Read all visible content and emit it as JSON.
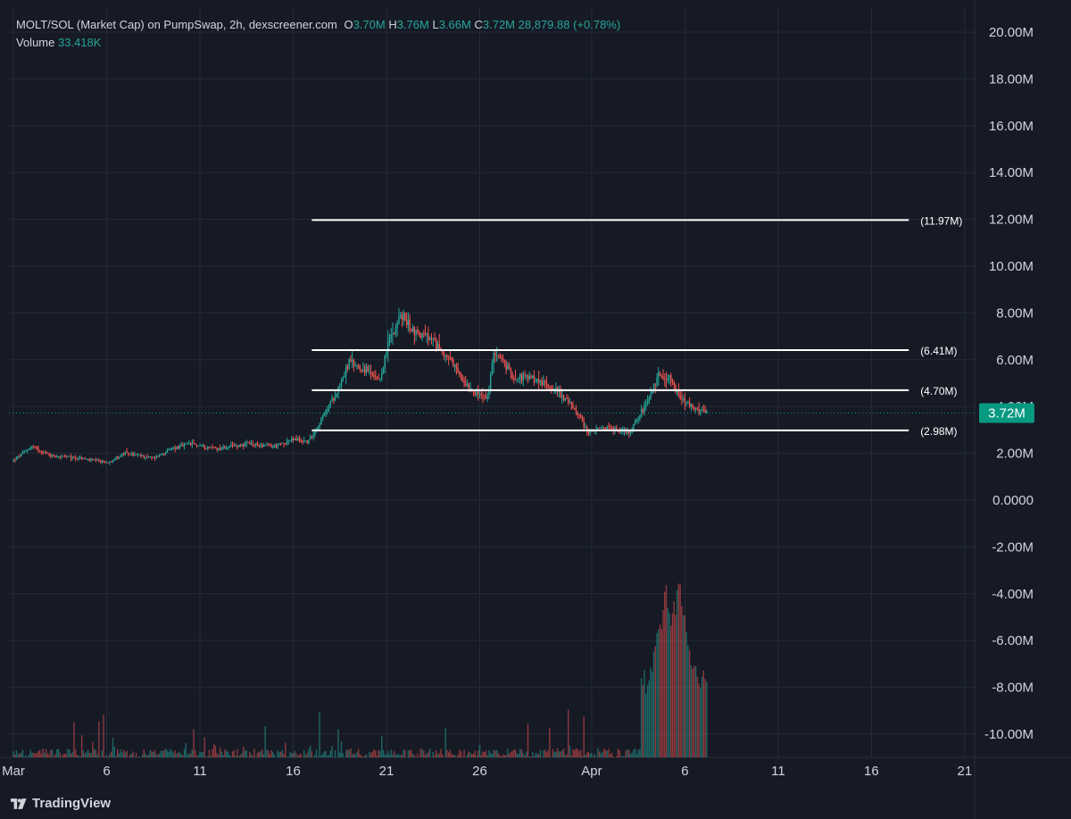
{
  "header": {
    "title": "MOLT/SOL (Market Cap) on PumpSwap, 2h, dexscreener.com",
    "ohlc": [
      {
        "key": "O",
        "value": "3.70M"
      },
      {
        "key": "H",
        "value": "3.76M"
      },
      {
        "key": "L",
        "value": "3.66M"
      },
      {
        "key": "C",
        "value": "3.72M"
      }
    ],
    "change": "28,879.88 (+0.78%)",
    "volume_label": "Volume",
    "volume_value": "33.418K"
  },
  "brand": {
    "name": "TradingView",
    "icon": "tradingview-logo-icon"
  },
  "colors": {
    "background": "#161a25",
    "grid": "#252a37",
    "up": "#26a69a",
    "down": "#ef5350",
    "level_line": "#ffffff",
    "price_tag": "#089981"
  },
  "chart_data": {
    "type": "candlestick",
    "x_axis": {
      "range": [
        "Mar 1",
        "Apr 23"
      ],
      "tick_labels": [
        {
          "label": "Mar",
          "day": 1
        },
        {
          "label": "6",
          "day": 6
        },
        {
          "label": "11",
          "day": 11
        },
        {
          "label": "16",
          "day": 16
        },
        {
          "label": "21",
          "day": 21
        },
        {
          "label": "26",
          "day": 26
        },
        {
          "label": "Apr",
          "day": 32
        },
        {
          "label": "6",
          "day": 37
        },
        {
          "label": "11",
          "day": 42
        },
        {
          "label": "16",
          "day": 47
        },
        {
          "label": "21",
          "day": 52
        }
      ]
    },
    "y_axis": {
      "range": [
        -10.8,
        20.8
      ],
      "unit": "M",
      "tick_labels": [
        {
          "label": "20.00M",
          "value": 20
        },
        {
          "label": "18.00M",
          "value": 18
        },
        {
          "label": "16.00M",
          "value": 16
        },
        {
          "label": "14.00M",
          "value": 14
        },
        {
          "label": "12.00M",
          "value": 12
        },
        {
          "label": "10.00M",
          "value": 10
        },
        {
          "label": "8.00M",
          "value": 8
        },
        {
          "label": "6.00M",
          "value": 6
        },
        {
          "label": "4.00M",
          "value": 4
        },
        {
          "label": "2.00M",
          "value": 2
        },
        {
          "label": "0.0000",
          "value": 0
        },
        {
          "label": "-2.00M",
          "value": -2
        },
        {
          "label": "-4.00M",
          "value": -4
        },
        {
          "label": "-6.00M",
          "value": -6
        },
        {
          "label": "-8.00M",
          "value": -8
        },
        {
          "label": "-10.00M",
          "value": -10
        }
      ]
    },
    "grid": true,
    "last_price": {
      "label": "3.72M",
      "value": 3.72
    },
    "levels": [
      {
        "label": "(11.97M)",
        "value": 11.97,
        "from_day": 17.0,
        "to_day": 49.0
      },
      {
        "label": "(6.41M)",
        "value": 6.41,
        "from_day": 17.0,
        "to_day": 49.0
      },
      {
        "label": "(4.70M)",
        "value": 4.7,
        "from_day": 17.0,
        "to_day": 49.0
      },
      {
        "label": "(2.98M)",
        "value": 2.98,
        "from_day": 17.0,
        "to_day": 49.0
      }
    ],
    "price_path": [
      {
        "day": 1.0,
        "value": 1.7
      },
      {
        "day": 2.0,
        "value": 2.3
      },
      {
        "day": 3.0,
        "value": 1.9
      },
      {
        "day": 4.5,
        "value": 1.8
      },
      {
        "day": 6.0,
        "value": 1.6
      },
      {
        "day": 7.0,
        "value": 2.0
      },
      {
        "day": 8.5,
        "value": 1.8
      },
      {
        "day": 9.5,
        "value": 2.2
      },
      {
        "day": 10.5,
        "value": 2.4
      },
      {
        "day": 12.0,
        "value": 2.2
      },
      {
        "day": 13.5,
        "value": 2.4
      },
      {
        "day": 15.0,
        "value": 2.3
      },
      {
        "day": 16.0,
        "value": 2.6
      },
      {
        "day": 16.8,
        "value": 2.5
      },
      {
        "day": 17.5,
        "value": 3.4
      },
      {
        "day": 18.3,
        "value": 4.6
      },
      {
        "day": 19.0,
        "value": 5.9
      },
      {
        "day": 20.0,
        "value": 5.5
      },
      {
        "day": 20.6,
        "value": 5.0
      },
      {
        "day": 21.2,
        "value": 7.0
      },
      {
        "day": 21.8,
        "value": 7.9
      },
      {
        "day": 22.5,
        "value": 7.2
      },
      {
        "day": 23.3,
        "value": 6.9
      },
      {
        "day": 24.2,
        "value": 6.2
      },
      {
        "day": 25.0,
        "value": 5.2
      },
      {
        "day": 25.8,
        "value": 4.6
      },
      {
        "day": 26.4,
        "value": 4.3
      },
      {
        "day": 26.8,
        "value": 6.4
      },
      {
        "day": 27.8,
        "value": 5.3
      },
      {
        "day": 28.8,
        "value": 5.2
      },
      {
        "day": 30.0,
        "value": 4.8
      },
      {
        "day": 31.2,
        "value": 3.8
      },
      {
        "day": 31.8,
        "value": 2.9
      },
      {
        "day": 32.8,
        "value": 3.1
      },
      {
        "day": 34.0,
        "value": 2.9
      },
      {
        "day": 35.0,
        "value": 4.2
      },
      {
        "day": 35.6,
        "value": 5.4
      },
      {
        "day": 36.2,
        "value": 5.2
      },
      {
        "day": 36.8,
        "value": 4.3
      },
      {
        "day": 37.5,
        "value": 3.9
      },
      {
        "day": 38.2,
        "value": 3.72
      }
    ],
    "volume_spikes": [
      {
        "day": 35.2,
        "value": 0.45
      },
      {
        "day": 35.6,
        "value": 0.72
      },
      {
        "day": 36.0,
        "value": 0.88
      },
      {
        "day": 36.4,
        "value": 0.78
      },
      {
        "day": 36.7,
        "value": 0.95
      },
      {
        "day": 37.1,
        "value": 0.62
      },
      {
        "day": 37.5,
        "value": 0.48
      },
      {
        "day": 38.0,
        "value": 0.44
      }
    ]
  }
}
